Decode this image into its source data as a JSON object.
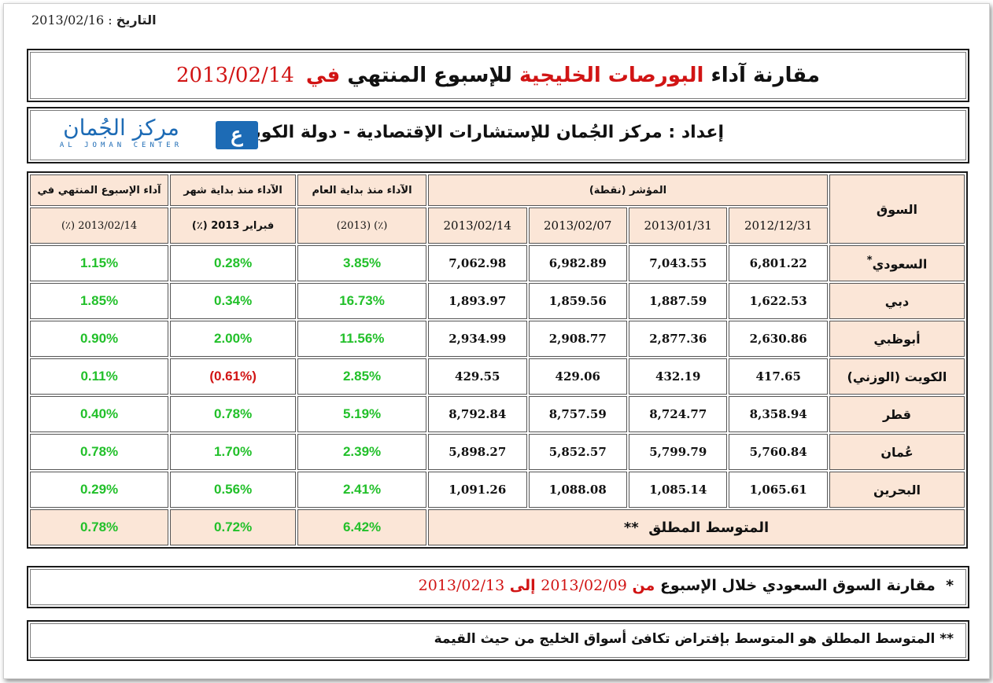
{
  "header": {
    "date_label": "التاريخ",
    "date_sep": " : ",
    "date_value": "2013/02/16"
  },
  "title": {
    "part1": "مقارنة آداء",
    "part2": "البورصات الخليجية",
    "part3": "للإسبوع المنتهي",
    "part4": "في",
    "date": "2013/02/14"
  },
  "prepared": {
    "label": "إعداد",
    "sep": " : ",
    "text": "مركز الجُمان للإستشارات الإقتصادية - دولة الكويت"
  },
  "logo": {
    "arabic": "مركز الجُمان",
    "english": "AL JOMAN CENTER",
    "badge": "ع"
  },
  "table": {
    "col_market": "السوق",
    "col_index": "المؤشر (نقطة)",
    "index_dates": [
      "2012/12/31",
      "2013/01/31",
      "2013/02/07",
      "2013/02/14"
    ],
    "col_ytd": "الآداء منذ بداية العام",
    "col_ytd_sub": "(٪) (2013)",
    "col_mtd": "الآداء منذ بداية شهر",
    "col_mtd_sub": "فبراير 2013 (٪)",
    "col_wk": "آداء الإسبوع المنتهي في",
    "col_wk_sub": "2013/02/14 (٪)",
    "rows": [
      {
        "market": "السعودي",
        "mark": "*",
        "v1": "6,801.22",
        "v2": "7,043.55",
        "v3": "6,982.89",
        "v4": "7,062.98",
        "ytd": "3.85%",
        "mtd": "0.28%",
        "wk": "1.15%"
      },
      {
        "market": "دبي",
        "mark": "",
        "v1": "1,622.53",
        "v2": "1,887.59",
        "v3": "1,859.56",
        "v4": "1,893.97",
        "ytd": "16.73%",
        "mtd": "0.34%",
        "wk": "1.85%"
      },
      {
        "market": "أبوظبي",
        "mark": "",
        "v1": "2,630.86",
        "v2": "2,877.36",
        "v3": "2,908.77",
        "v4": "2,934.99",
        "ytd": "11.56%",
        "mtd": "2.00%",
        "wk": "0.90%"
      },
      {
        "market": "الكويت (الوزني)",
        "mark": "",
        "v1": "417.65",
        "v2": "432.19",
        "v3": "429.06",
        "v4": "429.55",
        "ytd": "2.85%",
        "mtd": "(0.61%)",
        "wk": "0.11%"
      },
      {
        "market": "قطر",
        "mark": "",
        "v1": "8,358.94",
        "v2": "8,724.77",
        "v3": "8,757.59",
        "v4": "8,792.84",
        "ytd": "5.19%",
        "mtd": "0.78%",
        "wk": "0.40%"
      },
      {
        "market": "عُمان",
        "mark": "",
        "v1": "5,760.84",
        "v2": "5,799.79",
        "v3": "5,852.57",
        "v4": "5,898.27",
        "ytd": "2.39%",
        "mtd": "1.70%",
        "wk": "0.78%"
      },
      {
        "market": "البحرين",
        "mark": "",
        "v1": "1,065.61",
        "v2": "1,085.14",
        "v3": "1,088.08",
        "v4": "1,091.26",
        "ytd": "2.41%",
        "mtd": "0.56%",
        "wk": "0.29%"
      }
    ],
    "avg": {
      "label": "المتوسط المطلق",
      "mark": "**",
      "ytd": "6.42%",
      "mtd": "0.72%",
      "wk": "0.78%"
    }
  },
  "notes": {
    "n1_star": "*",
    "n1_a": "مقارنة السوق السعودي خلال الإسبوع",
    "n1_from": "من",
    "n1_d1": "2013/02/09",
    "n1_to": "إلى",
    "n1_d2": "2013/02/13",
    "n2_star": "**",
    "n2_text": "المتوسط المطلق هو المتوسط بإفتراض تكافئ أسواق الخليج من حيث القيمة"
  },
  "colors": {
    "positive": "#22c02a",
    "negative": "#d11414",
    "header_bg": "#fbe6d7",
    "accent": "#1d6bb5"
  }
}
